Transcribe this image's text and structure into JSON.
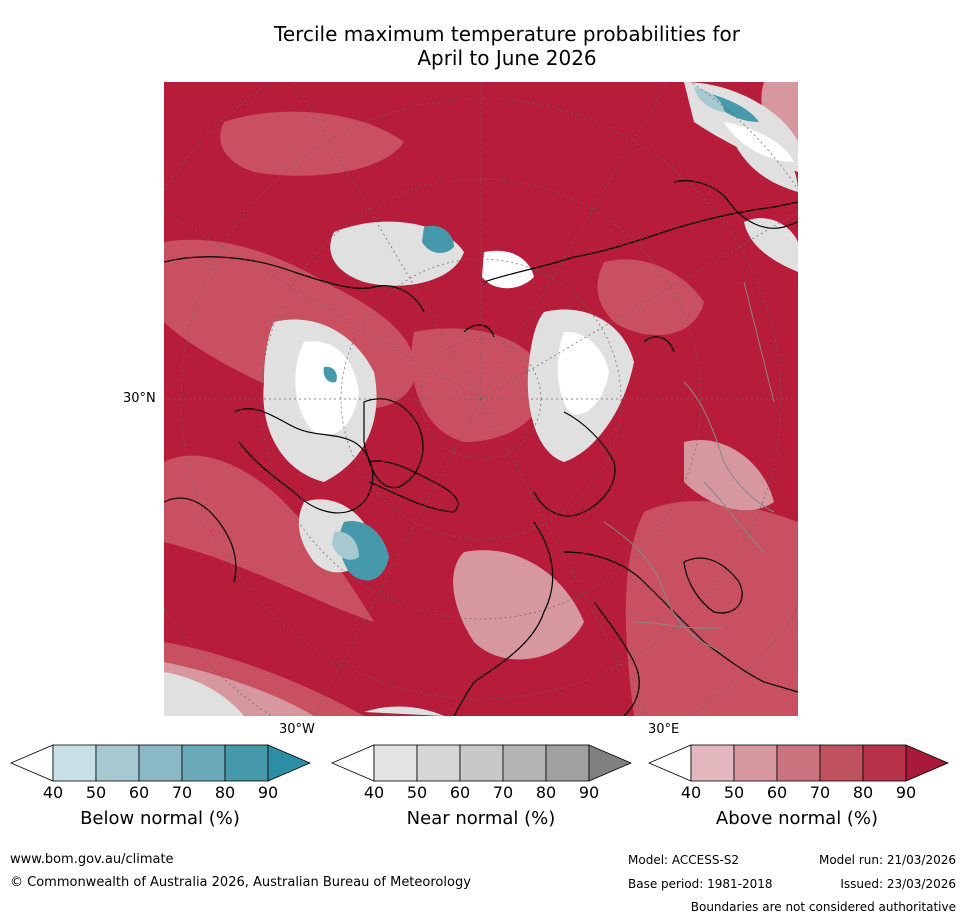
{
  "title": {
    "line1": "Tercile maximum temperature probabilities for",
    "line2": "April to June 2026"
  },
  "map": {
    "lat_label": "30°N",
    "lon_label_left": "30°W",
    "lon_label_right": "30°E"
  },
  "colorbars": [
    {
      "title": "Below normal (%)",
      "ticks": [
        "40",
        "50",
        "60",
        "70",
        "80",
        "90"
      ],
      "colors": [
        "#ffffff",
        "#c6e0e6",
        "#a6c9d1",
        "#8ab8c4",
        "#6aaab8",
        "#4699ab",
        "#2b8ea4"
      ]
    },
    {
      "title": "Near normal (%)",
      "ticks": [
        "40",
        "50",
        "60",
        "70",
        "80",
        "90"
      ],
      "colors": [
        "#ffffff",
        "#e4e4e4",
        "#d6d6d6",
        "#c8c8c8",
        "#b4b4b4",
        "#a0a0a0",
        "#808080"
      ]
    },
    {
      "title": "Above normal (%)",
      "ticks": [
        "40",
        "50",
        "60",
        "70",
        "80",
        "90"
      ],
      "colors": [
        "#ffffff",
        "#e2b7bd",
        "#d6979f",
        "#ca7480",
        "#c0525f",
        "#b83249",
        "#a8193a"
      ]
    }
  ],
  "footer": {
    "url": "www.bom.gov.au/climate",
    "copyright": "© Commonwealth of Australia 2026, Australian Bureau of Meteorology",
    "model": "Model: ACCESS-S2",
    "base_period": "Base period: 1981-2018",
    "model_run": "Model run: 21/03/2026",
    "issued": "Issued: 23/03/2026",
    "disclaimer": "Boundaries are not considered authoritative"
  },
  "colors": {
    "above_strong": "#b71c3a",
    "above_mid": "#c85060",
    "near": "#e0e0e0",
    "below": "#2b8ea4"
  }
}
